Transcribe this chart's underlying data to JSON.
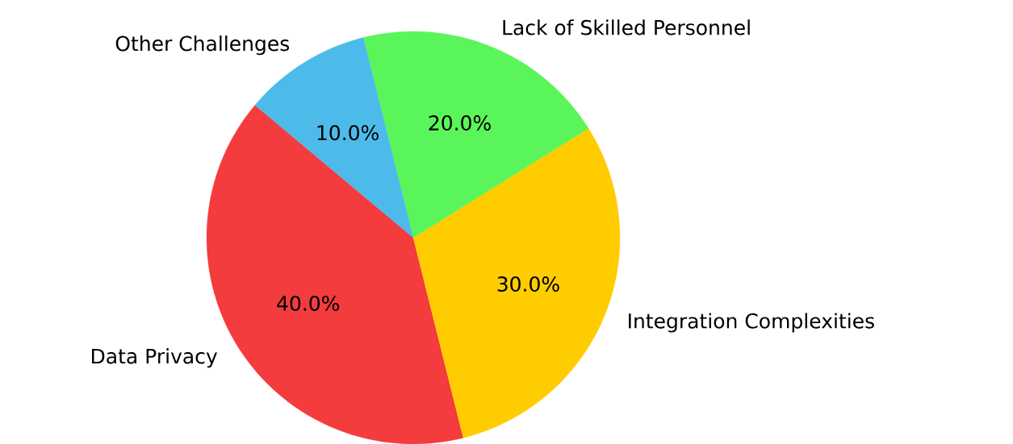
{
  "chart_data": {
    "type": "pie",
    "categories": [
      "Data Privacy",
      "Integration Complexities",
      "Lack of Skilled Personnel",
      "Other Challenges"
    ],
    "values": [
      40,
      30,
      20,
      10
    ],
    "colors": [
      "#f43b3d",
      "#ffcc00",
      "#5af55a",
      "#4cbbea"
    ],
    "value_labels": [
      "40.0%",
      "30.0%",
      "20.0%",
      "10.0%"
    ]
  }
}
